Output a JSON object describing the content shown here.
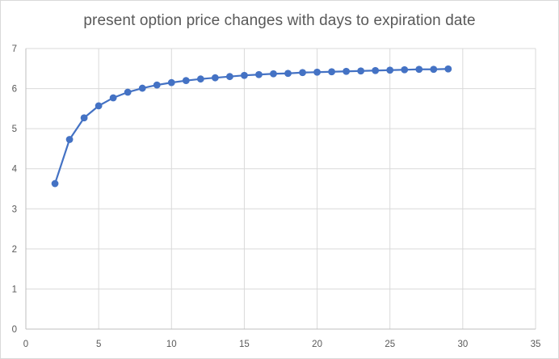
{
  "chart_data": {
    "type": "scatter",
    "title": "present option price changes with days to expiration date",
    "xlabel": "",
    "ylabel": "",
    "xlim": [
      0,
      35
    ],
    "ylim": [
      0,
      7
    ],
    "x_ticks": [
      "0",
      "5",
      "10",
      "15",
      "20",
      "25",
      "30",
      "35"
    ],
    "y_ticks": [
      "0",
      "1",
      "2",
      "3",
      "4",
      "5",
      "6",
      "7"
    ],
    "grid": true,
    "legend": "none",
    "line_color": "#4472c4",
    "series": [
      {
        "x": [
          2,
          3,
          4,
          5,
          6,
          7,
          8,
          9,
          10,
          11,
          12,
          13,
          14,
          15,
          16,
          17,
          18,
          19,
          20,
          21,
          22,
          23,
          24,
          25,
          26,
          27,
          28,
          29
        ],
        "y": [
          3.63,
          4.73,
          5.27,
          5.57,
          5.77,
          5.91,
          6.01,
          6.09,
          6.15,
          6.2,
          6.24,
          6.27,
          6.3,
          6.33,
          6.35,
          6.37,
          6.38,
          6.4,
          6.41,
          6.42,
          6.43,
          6.44,
          6.45,
          6.46,
          6.47,
          6.48,
          6.48,
          6.49
        ]
      }
    ]
  }
}
